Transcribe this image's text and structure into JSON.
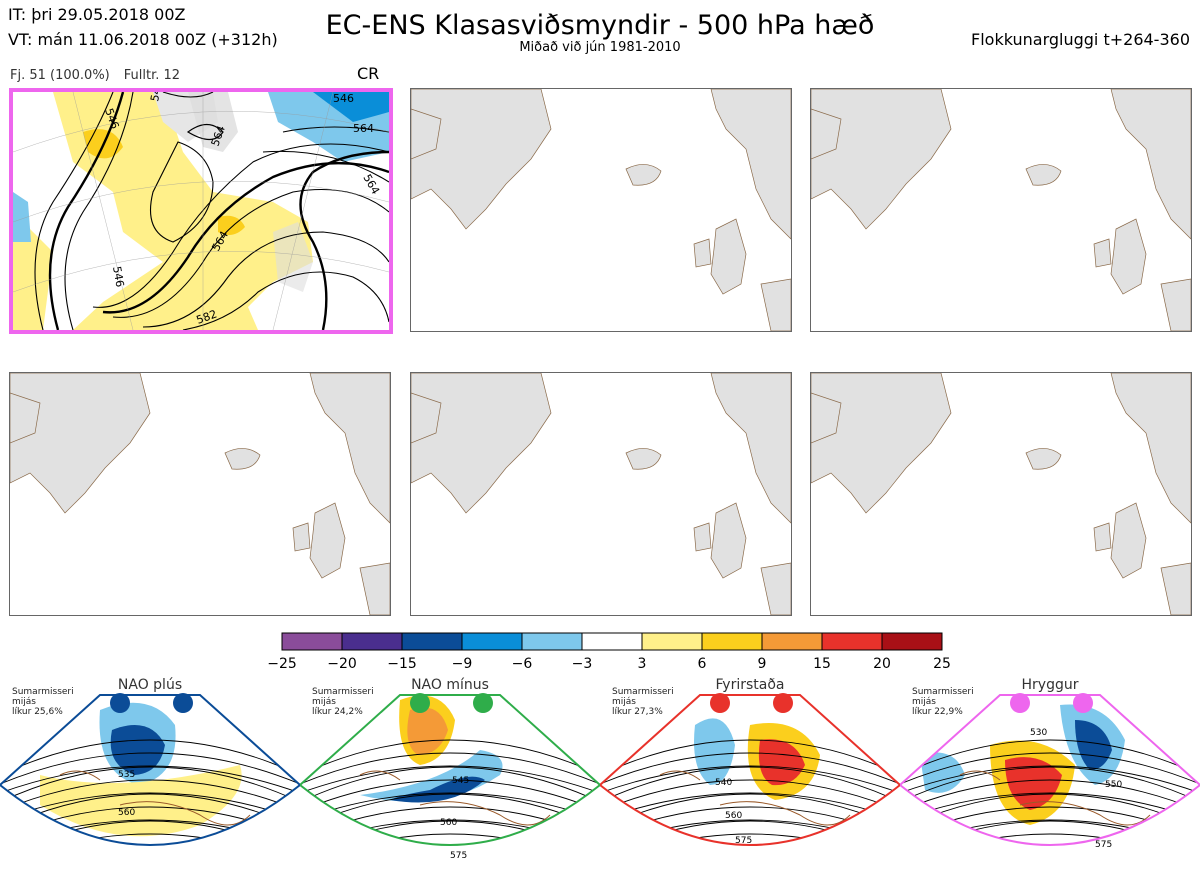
{
  "header": {
    "title": "EC-ENS Klasasviðsmyndir - 500 hPa hæð",
    "subtitle": "Miðað við jún 1981-2010",
    "initial_time": "IT: þri 29.05.2018 00Z",
    "valid_time": "VT: mán 11.06.2018 00Z  (+312h)",
    "window": "Flokkunargluggi t+264-360"
  },
  "panel_main": {
    "members": "Fj. 51 (100.0%)",
    "representative": "Fulltr. 12",
    "regime_code": "CR",
    "contour_labels": [
      "546",
      "546",
      "564",
      "564",
      "546",
      "564",
      "582",
      "546",
      "564"
    ]
  },
  "colorbar": {
    "colors": [
      "#8a4c9a",
      "#4a2e8e",
      "#0b4c97",
      "#0a8ed8",
      "#7ec8ec",
      "#ffffff",
      "#fff08a",
      "#fbcf1d",
      "#f49a37",
      "#e8322b",
      "#a81016"
    ],
    "ticks": [
      "−25",
      "−20",
      "−15",
      "−9",
      "−6",
      "−3",
      "3",
      "6",
      "9",
      "15",
      "20",
      "25"
    ]
  },
  "regimes": [
    {
      "name": "NAO plús",
      "season": "Sumarmisseri",
      "basis": "mijás",
      "probability": "líkur 25,6%",
      "color": "#0b4c97",
      "labels": [
        "535",
        "560"
      ]
    },
    {
      "name": "NAO mínus",
      "season": "Sumarmisseri",
      "basis": "mijás",
      "probability": "líkur 24,2%",
      "color": "#2fad4a",
      "labels": [
        "545",
        "560",
        "575"
      ]
    },
    {
      "name": "Fyrirstaða",
      "season": "Sumarmisseri",
      "basis": "mijás",
      "probability": "líkur 27,3%",
      "color": "#e8322b",
      "labels": [
        "540",
        "560",
        "575"
      ]
    },
    {
      "name": "Hryggur",
      "season": "Sumarmisseri",
      "basis": "mijás",
      "probability": "líkur 22,9%",
      "color": "#ee66ee",
      "labels": [
        "530",
        "550",
        "575"
      ]
    }
  ]
}
